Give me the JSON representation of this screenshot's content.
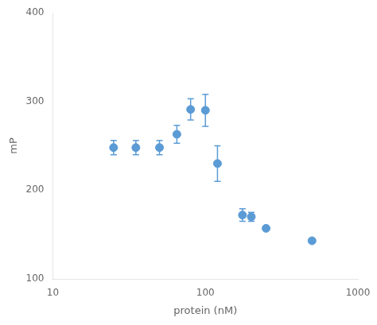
{
  "chart_data": {
    "type": "scatter",
    "x": [
      25,
      35,
      50,
      65,
      80,
      100,
      120,
      175,
      200,
      250,
      500
    ],
    "values": [
      248,
      248,
      248,
      263,
      291,
      290,
      230,
      172,
      170,
      157,
      143
    ],
    "yerr": [
      8,
      8,
      8,
      10,
      12,
      18,
      20,
      7,
      5,
      0,
      0
    ],
    "color": "#5B9BD5",
    "marker": "circle",
    "xlabel": "protein (nM)",
    "ylabel": "mP",
    "log": "x",
    "xlim": [
      10,
      1000
    ],
    "ylim": [
      100,
      400
    ],
    "xticks": [
      10,
      100,
      1000
    ],
    "yticks": [
      100,
      200,
      300,
      400
    ],
    "grid": false
  }
}
